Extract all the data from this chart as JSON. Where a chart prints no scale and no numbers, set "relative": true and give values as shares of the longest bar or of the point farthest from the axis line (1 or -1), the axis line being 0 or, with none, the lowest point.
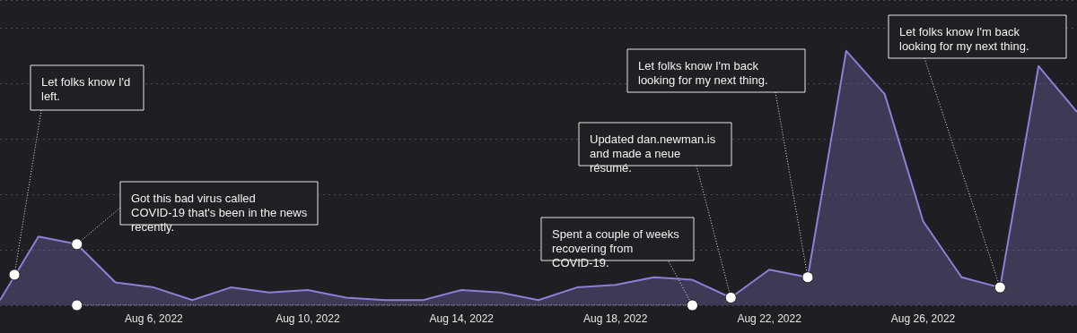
{
  "chart_data": {
    "type": "area",
    "relative": true,
    "grid": "y",
    "x": [
      "2022-08-02",
      "2022-08-03",
      "2022-08-04",
      "2022-08-05",
      "2022-08-06",
      "2022-08-07",
      "2022-08-08",
      "2022-08-09",
      "2022-08-10",
      "2022-08-11",
      "2022-08-12",
      "2022-08-13",
      "2022-08-14",
      "2022-08-15",
      "2022-08-16",
      "2022-08-17",
      "2022-08-18",
      "2022-08-19",
      "2022-08-20",
      "2022-08-21",
      "2022-08-22",
      "2022-08-23",
      "2022-08-24",
      "2022-08-25",
      "2022-08-26",
      "2022-08-27",
      "2022-08-28",
      "2022-08-29",
      "2022-08-30"
    ],
    "series": [
      {
        "color": "#8b80d6",
        "marker": "none",
        "values": [
          0.02,
          0.27,
          0.24,
          0.09,
          0.07,
          0.02,
          0.07,
          0.05,
          0.06,
          0.03,
          0.02,
          0.02,
          0.06,
          0.05,
          0.02,
          0.07,
          0.08,
          0.11,
          0.1,
          0.03,
          0.14,
          0.11,
          1,
          0.83,
          0.33,
          0.11,
          0.07,
          0.94,
          0.76
        ]
      },
      {
        "type": "line",
        "color": "#ffffff",
        "marker": "circle",
        "line_style": "dotted",
        "x": [
          "2022-08-04",
          "2022-08-20"
        ],
        "values": [
          0,
          0
        ]
      }
    ],
    "xlim": [
      "2022-08-02",
      "2022-08-30"
    ],
    "xticks": [
      {
        "value": "2022-08-06",
        "label": "Aug 6, 2022"
      },
      {
        "value": "2022-08-10",
        "label": "Aug 10, 2022"
      },
      {
        "value": "2022-08-14",
        "label": "Aug 14, 2022"
      },
      {
        "value": "2022-08-18",
        "label": "Aug 18, 2022"
      },
      {
        "value": "2022-08-22",
        "label": "Aug 22, 2022"
      },
      {
        "value": "2022-08-26",
        "label": "Aug 26, 2022"
      }
    ],
    "annotations": [
      {
        "text": "Let folks know I'd left.",
        "x": "2022-08-02T09:00",
        "y": 0.12
      },
      {
        "text": "Got this bad virus called COVID-19 that's been in the news recently.",
        "x": "2022-08-04",
        "y": 0.24
      },
      {
        "text": "Spent a couple of weeks recovering from COVID-19.",
        "x": "2022-08-20",
        "y": 0
      },
      {
        "text": "Updated dan.newman.is and made a neue résumé.",
        "x": "2022-08-21",
        "y": 0.03
      },
      {
        "text": "Let folks know I'm back looking for my next thing.",
        "x": "2022-08-23",
        "y": 0.11
      },
      {
        "text": "Let folks know I'm back looking for my next thing.",
        "x": "2022-08-28",
        "y": 0.07
      }
    ]
  }
}
